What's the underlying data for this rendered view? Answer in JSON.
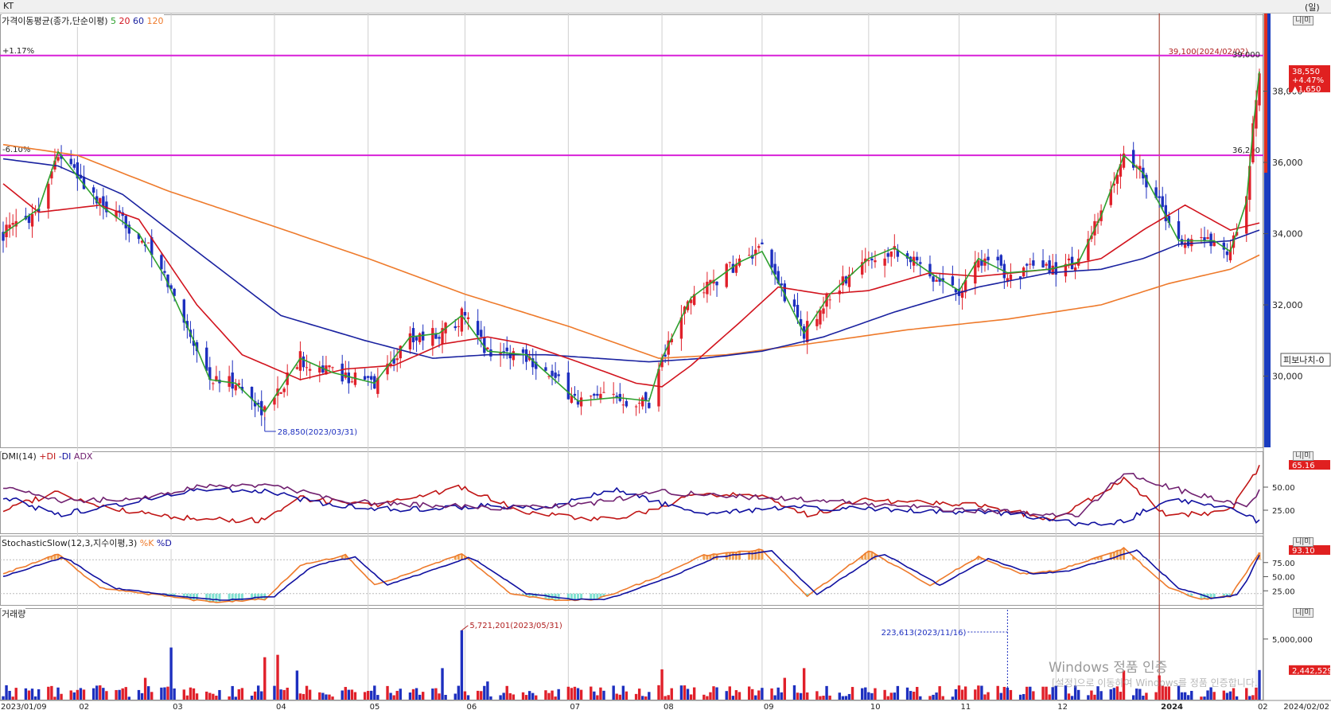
{
  "window": {
    "symbol": "KT",
    "period_mark": "(일)"
  },
  "panes": {
    "price": {
      "label": "가격이동평균(종가,단순이평)",
      "ma_labels": [
        "5",
        "20",
        "60",
        "120"
      ]
    },
    "dmi": {
      "label": "DMI(14)",
      "plus_label": "+DI",
      "minus_label": "-DI",
      "adx_label": "ADX"
    },
    "stoch": {
      "label": "StochasticSlow(12,3,지수이평,3)",
      "k_label": "%K",
      "d_label": "%D"
    },
    "volume": {
      "label": "거래량"
    }
  },
  "annotations": {
    "pct_top": "+1.17%",
    "pct_mid": "-6.10%",
    "high_label": "39,100(2024/02/02)",
    "high_value": "39,000",
    "mid_line_value": "36,200",
    "low_label": "28,850(2023/03/31)",
    "vol_peak_label": "5,721,201(2023/05/31)",
    "vol_marker_label": "223,613(2023/11/16)",
    "current_price": "38,550",
    "current_change_pct": "+4.47%",
    "current_change": "▲1,650",
    "fibonacci": "피보나치-0",
    "dmi_value": "65.16",
    "stoch_value": "93.10",
    "vol_value": "2,442,529"
  },
  "controls": {
    "mini_btn": "니|미"
  },
  "watermark": {
    "line1": "Windows 정품 인증",
    "line2": "[설정]으로 이동하여 Windows를 정품 인증합니다."
  },
  "colors": {
    "up": "#e0202a",
    "down": "#1d2fbf",
    "ma5": "#2ea02e",
    "ma20": "#d2141e",
    "ma60": "#1a22a0",
    "ma120": "#ee7a2b",
    "hline": "#d820d8",
    "vline": "#a03020",
    "plus_di": "#c01515",
    "minus_di": "#1010a0",
    "adx": "#702070"
  },
  "chart_data": {
    "type": "candlestick",
    "x_range": [
      "2023/01/09",
      "2024/02/02"
    ],
    "x_ticks": [
      "2023/01/09",
      "02",
      "03",
      "04",
      "05",
      "06",
      "07",
      "08",
      "09",
      "10",
      "11",
      "12",
      "2024",
      "02",
      "2024/02/02"
    ],
    "price": {
      "y_range": [
        28000,
        39800
      ],
      "y_ticks": [
        "30,000",
        "32,000",
        "34,000",
        "36,000",
        "38,000",
        "39,000"
      ],
      "hlines": [
        39000,
        36200
      ],
      "anchors": [
        [
          "2023/01/09",
          34000
        ],
        [
          "2023/01/20",
          34700
        ],
        [
          "2023/01/26",
          36300
        ],
        [
          "2023/02/08",
          34800
        ],
        [
          "2023/02/20",
          34000
        ],
        [
          "2023/02/28",
          32800
        ],
        [
          "2023/03/09",
          31000
        ],
        [
          "2023/03/14",
          29900
        ],
        [
          "2023/03/22",
          29800
        ],
        [
          "2023/03/31",
          29000
        ],
        [
          "2023/04/11",
          30500
        ],
        [
          "2023/04/21",
          30100
        ],
        [
          "2023/05/04",
          29800
        ],
        [
          "2023/05/15",
          31100
        ],
        [
          "2023/05/24",
          31200
        ],
        [
          "2023/05/31",
          31700
        ],
        [
          "2023/06/08",
          30700
        ],
        [
          "2023/06/20",
          30600
        ],
        [
          "2023/07/06",
          29300
        ],
        [
          "2023/07/18",
          29400
        ],
        [
          "2023/07/28",
          29300
        ],
        [
          "2023/08/01",
          30500
        ],
        [
          "2023/08/10",
          32200
        ],
        [
          "2023/08/25",
          33200
        ],
        [
          "2023/09/01",
          33500
        ],
        [
          "2023/09/08",
          32300
        ],
        [
          "2023/09/14",
          31200
        ],
        [
          "2023/09/22",
          32300
        ],
        [
          "2023/10/04",
          33300
        ],
        [
          "2023/10/12",
          33600
        ],
        [
          "2023/10/23",
          32900
        ],
        [
          "2023/11/01",
          32400
        ],
        [
          "2023/11/07",
          33300
        ],
        [
          "2023/11/16",
          32900
        ],
        [
          "2023/11/29",
          33000
        ],
        [
          "2023/12/08",
          33200
        ],
        [
          "2023/12/15",
          34500
        ],
        [
          "2023/12/22",
          36200
        ],
        [
          "2023/12/28",
          35700
        ],
        [
          "2024/01/04",
          34500
        ],
        [
          "2024/01/08",
          33800
        ],
        [
          "2024/01/19",
          33800
        ],
        [
          "2024/01/24",
          33500
        ],
        [
          "2024/01/29",
          34900
        ],
        [
          "2024/01/31",
          36900
        ],
        [
          "2024/02/02",
          38550
        ]
      ],
      "ma20_anchors": [
        [
          "2023/01/09",
          35400
        ],
        [
          "2023/01/20",
          34600
        ],
        [
          "2023/02/08",
          34800
        ],
        [
          "2023/02/20",
          34400
        ],
        [
          "2023/03/10",
          32000
        ],
        [
          "2023/03/24",
          30600
        ],
        [
          "2023/04/11",
          29900
        ],
        [
          "2023/04/25",
          30200
        ],
        [
          "2023/05/10",
          30300
        ],
        [
          "2023/05/25",
          30900
        ],
        [
          "2023/06/08",
          31100
        ],
        [
          "2023/06/20",
          30900
        ],
        [
          "2023/07/06",
          30400
        ],
        [
          "2023/07/24",
          29800
        ],
        [
          "2023/08/01",
          29700
        ],
        [
          "2023/08/10",
          30300
        ],
        [
          "2023/08/25",
          31500
        ],
        [
          "2023/09/06",
          32500
        ],
        [
          "2023/09/20",
          32300
        ],
        [
          "2023/10/04",
          32400
        ],
        [
          "2023/10/23",
          32900
        ],
        [
          "2023/11/07",
          32800
        ],
        [
          "2023/11/29",
          33000
        ],
        [
          "2023/12/15",
          33300
        ],
        [
          "2023/12/28",
          34100
        ],
        [
          "2024/01/10",
          34800
        ],
        [
          "2024/01/24",
          34100
        ],
        [
          "2024/02/02",
          34300
        ]
      ],
      "ma60_anchors": [
        [
          "2023/01/09",
          36100
        ],
        [
          "2023/01/26",
          35900
        ],
        [
          "2023/02/15",
          35100
        ],
        [
          "2023/03/10",
          33500
        ],
        [
          "2023/04/05",
          31700
        ],
        [
          "2023/05/01",
          31000
        ],
        [
          "2023/05/22",
          30500
        ],
        [
          "2023/06/08",
          30600
        ],
        [
          "2023/06/26",
          30600
        ],
        [
          "2023/07/12",
          30500
        ],
        [
          "2023/07/28",
          30400
        ],
        [
          "2023/08/14",
          30500
        ],
        [
          "2023/09/01",
          30700
        ],
        [
          "2023/09/20",
          31100
        ],
        [
          "2023/10/12",
          31800
        ],
        [
          "2023/11/07",
          32500
        ],
        [
          "2023/11/29",
          32900
        ],
        [
          "2023/12/15",
          33000
        ],
        [
          "2023/12/28",
          33300
        ],
        [
          "2024/01/08",
          33700
        ],
        [
          "2024/01/24",
          33800
        ],
        [
          "2024/02/02",
          34100
        ]
      ],
      "ma120_anchors": [
        [
          "2023/01/09",
          36500
        ],
        [
          "2023/02/01",
          36200
        ],
        [
          "2023/03/01",
          35200
        ],
        [
          "2023/04/03",
          34200
        ],
        [
          "2023/05/02",
          33300
        ],
        [
          "2023/06/01",
          32300
        ],
        [
          "2023/07/03",
          31400
        ],
        [
          "2023/07/31",
          30500
        ],
        [
          "2023/08/21",
          30600
        ],
        [
          "2023/09/15",
          30900
        ],
        [
          "2023/10/16",
          31300
        ],
        [
          "2023/11/16",
          31600
        ],
        [
          "2023/12/15",
          32000
        ],
        [
          "2024/01/05",
          32600
        ],
        [
          "2024/01/24",
          33000
        ],
        [
          "2024/02/02",
          33400
        ]
      ]
    },
    "dmi": {
      "y_ticks": [
        "50.00",
        "25.00"
      ],
      "y_range": [
        0,
        75
      ],
      "series": [
        {
          "name": "+DI",
          "anchors": [
            [
              "2023/01/09",
              25
            ],
            [
              "2023/01/26",
              45
            ],
            [
              "2023/02/08",
              28
            ],
            [
              "2023/03/10",
              15
            ],
            [
              "2023/03/31",
              14
            ],
            [
              "2023/04/11",
              38
            ],
            [
              "2023/05/04",
              30
            ],
            [
              "2023/05/31",
              50
            ],
            [
              "2023/06/20",
              22
            ],
            [
              "2023/07/18",
              14
            ],
            [
              "2023/08/10",
              40
            ],
            [
              "2023/09/01",
              42
            ],
            [
              "2023/09/15",
              20
            ],
            [
              "2023/10/04",
              36
            ],
            [
              "2023/11/07",
              30
            ],
            [
              "2023/12/01",
              15
            ],
            [
              "2023/12/22",
              58
            ],
            [
              "2024/01/05",
              18
            ],
            [
              "2024/01/24",
              25
            ],
            [
              "2024/02/02",
              72
            ]
          ]
        },
        {
          "name": "-DI",
          "anchors": [
            [
              "2023/01/09",
              40
            ],
            [
              "2023/01/26",
              20
            ],
            [
              "2023/02/20",
              35
            ],
            [
              "2023/03/10",
              48
            ],
            [
              "2023/03/31",
              46
            ],
            [
              "2023/04/20",
              30
            ],
            [
              "2023/05/15",
              26
            ],
            [
              "2023/06/08",
              30
            ],
            [
              "2023/06/26",
              28
            ],
            [
              "2023/07/18",
              48
            ],
            [
              "2023/08/10",
              22
            ],
            [
              "2023/09/15",
              28
            ],
            [
              "2023/10/12",
              25
            ],
            [
              "2023/11/16",
              22
            ],
            [
              "2023/12/08",
              10
            ],
            [
              "2023/12/22",
              12
            ],
            [
              "2024/01/05",
              38
            ],
            [
              "2024/01/24",
              28
            ],
            [
              "2024/02/02",
              12
            ]
          ]
        },
        {
          "name": "ADX",
          "anchors": [
            [
              "2023/01/09",
              50
            ],
            [
              "2023/01/26",
              35
            ],
            [
              "2023/02/20",
              38
            ],
            [
              "2023/03/14",
              52
            ],
            [
              "2023/04/05",
              50
            ],
            [
              "2023/04/25",
              35
            ],
            [
              "2023/05/20",
              30
            ],
            [
              "2023/06/15",
              28
            ],
            [
              "2023/07/10",
              32
            ],
            [
              "2023/07/31",
              45
            ],
            [
              "2023/08/25",
              40
            ],
            [
              "2023/09/20",
              35
            ],
            [
              "2023/10/20",
              28
            ],
            [
              "2023/11/20",
              22
            ],
            [
              "2023/12/08",
              18
            ],
            [
              "2023/12/22",
              65
            ],
            [
              "2024/01/10",
              45
            ],
            [
              "2024/01/29",
              30
            ],
            [
              "2024/02/02",
              45
            ]
          ]
        }
      ]
    },
    "stochastic": {
      "y_ticks": [
        "75.00",
        "50.00",
        "25.00"
      ],
      "y_range": [
        0,
        100
      ],
      "series": [
        {
          "name": "%K",
          "anchors": [
            [
              "2023/01/09",
              55
            ],
            [
              "2023/01/26",
              90
            ],
            [
              "2023/02/08",
              30
            ],
            [
              "2023/03/01",
              15
            ],
            [
              "2023/03/14",
              5
            ],
            [
              "2023/03/31",
              10
            ],
            [
              "2023/04/11",
              70
            ],
            [
              "2023/04/25",
              88
            ],
            [
              "2023/05/04",
              35
            ],
            [
              "2023/05/31",
              90
            ],
            [
              "2023/06/15",
              20
            ],
            [
              "2023/06/30",
              8
            ],
            [
              "2023/07/12",
              10
            ],
            [
              "2023/07/31",
              50
            ],
            [
              "2023/08/14",
              88
            ],
            [
              "2023/09/01",
              98
            ],
            [
              "2023/09/15",
              15
            ],
            [
              "2023/10/04",
              96
            ],
            [
              "2023/10/23",
              35
            ],
            [
              "2023/11/07",
              85
            ],
            [
              "2023/11/20",
              55
            ],
            [
              "2023/12/01",
              60
            ],
            [
              "2023/12/22",
              100
            ],
            [
              "2024/01/05",
              30
            ],
            [
              "2024/01/15",
              10
            ],
            [
              "2024/01/24",
              15
            ],
            [
              "2024/02/02",
              93
            ]
          ]
        },
        {
          "name": "%D",
          "anchors": [
            [
              "2023/01/09",
              50
            ],
            [
              "2023/01/28",
              85
            ],
            [
              "2023/02/12",
              30
            ],
            [
              "2023/03/05",
              15
            ],
            [
              "2023/03/18",
              8
            ],
            [
              "2023/04/03",
              15
            ],
            [
              "2023/04/15",
              70
            ],
            [
              "2023/04/28",
              85
            ],
            [
              "2023/05/08",
              35
            ],
            [
              "2023/06/03",
              85
            ],
            [
              "2023/06/20",
              20
            ],
            [
              "2023/07/05",
              10
            ],
            [
              "2023/07/15",
              10
            ],
            [
              "2023/08/04",
              50
            ],
            [
              "2023/08/18",
              85
            ],
            [
              "2023/09/04",
              95
            ],
            [
              "2023/09/18",
              18
            ],
            [
              "2023/10/08",
              93
            ],
            [
              "2023/10/26",
              35
            ],
            [
              "2023/11/10",
              82
            ],
            [
              "2023/11/24",
              55
            ],
            [
              "2023/12/05",
              60
            ],
            [
              "2023/12/26",
              97
            ],
            [
              "2024/01/08",
              30
            ],
            [
              "2024/01/18",
              12
            ],
            [
              "2024/01/27",
              18
            ],
            [
              "2024/02/02",
              88
            ]
          ]
        }
      ]
    },
    "volume": {
      "y_ticks": [
        "5,000,000"
      ],
      "y_range": [
        0,
        6500000
      ],
      "peaks": [
        [
          "2023/01/26",
          1000000
        ],
        [
          "2023/02/22",
          1800000
        ],
        [
          "2023/03/02",
          4300000
        ],
        [
          "2023/03/31",
          3500000
        ],
        [
          "2023/04/04",
          3700000
        ],
        [
          "2023/04/10",
          2400000
        ],
        [
          "2023/05/25",
          2600000
        ],
        [
          "2023/05/31",
          5721201
        ],
        [
          "2023/06/08",
          1500000
        ],
        [
          "2023/08/01",
          2500000
        ],
        [
          "2023/09/08",
          1800000
        ],
        [
          "2023/09/14",
          2600000
        ],
        [
          "2023/12/22",
          2400000
        ],
        [
          "2024/01/02",
          2000000
        ],
        [
          "2024/02/02",
          2442529
        ]
      ],
      "base": 800000
    }
  }
}
